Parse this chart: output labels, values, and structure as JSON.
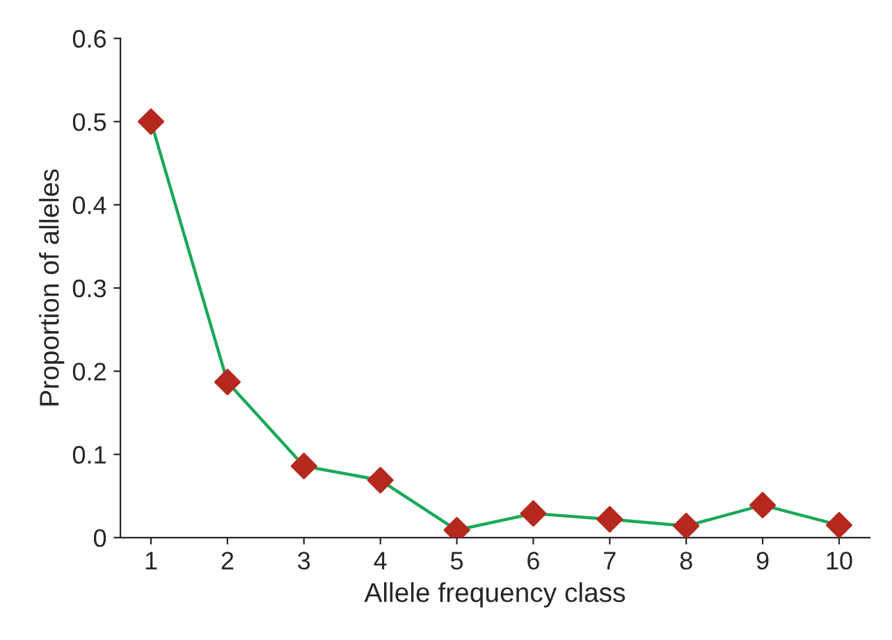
{
  "chart_data": {
    "type": "line",
    "xlabel": "Allele frequency class",
    "ylabel": "Proportion of alleles",
    "categories": [
      "1",
      "2",
      "3",
      "4",
      "5",
      "6",
      "7",
      "8",
      "9",
      "10"
    ],
    "series": [
      {
        "color": "#1aa85a",
        "colors": [
          "#b5281e",
          "#b5281e",
          "#b5281e",
          "#b5281e",
          "#b5281e",
          "#b5281e",
          "#b5281e",
          "#b5281e",
          "#b5281e",
          "#b5281e"
        ],
        "values": [
          0.5,
          0.187,
          0.086,
          0.069,
          0.009,
          0.029,
          0.022,
          0.014,
          0.039,
          0.015
        ]
      }
    ],
    "ylim": [
      0,
      0.6
    ],
    "yticks": [
      0,
      0.1,
      0.2,
      0.3,
      0.4,
      0.5,
      0.6
    ],
    "marker": "diamond",
    "line_style": "solid",
    "grid": false
  }
}
